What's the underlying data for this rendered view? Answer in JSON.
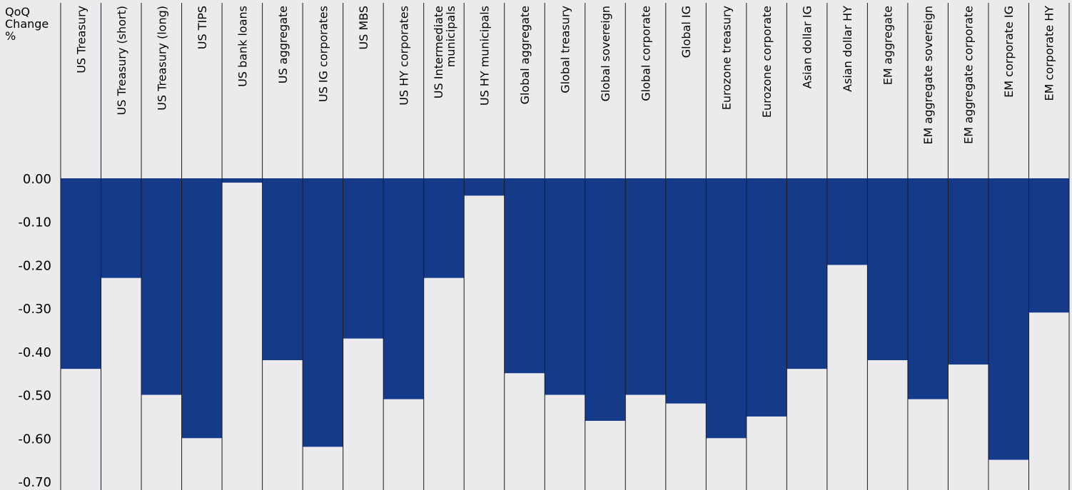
{
  "chart_data": {
    "type": "bar",
    "title": "",
    "ylabel": "QoQ\nChange\n%",
    "xlabel": "",
    "ylim": [
      -0.7,
      0.0
    ],
    "yticks": [
      "0.00",
      "-0.10",
      "-0.20",
      "-0.30",
      "-0.40",
      "-0.50",
      "-0.60",
      "-0.70"
    ],
    "bar_color": "#163a8a",
    "categories": [
      "US Treasury",
      "US Treasury (short)",
      "US Treasury (long)",
      "US TIPS",
      "US bank loans",
      "US aggregate",
      "US IG corporates",
      "US MBS",
      "US HY corporates",
      "US Intermediate municipals",
      "US HY municipals",
      "Global aggregate",
      "Global treasury",
      "Global sovereign",
      "Global corporate",
      "Global IG",
      "Eurozone treasury",
      "Eurozone corporate",
      "Asian dollar IG",
      "Asian dollar HY",
      "EM aggregate",
      "EM aggregate sovereign",
      "EM aggregate corporate",
      "EM corporate IG",
      "EM corporate HY"
    ],
    "values": [
      -0.44,
      -0.23,
      -0.5,
      -0.6,
      -0.01,
      -0.42,
      -0.62,
      -0.37,
      -0.51,
      -0.23,
      -0.04,
      -0.45,
      -0.5,
      -0.56,
      -0.5,
      -0.52,
      -0.6,
      -0.55,
      -0.44,
      -0.2,
      -0.42,
      -0.51,
      -0.43,
      -0.65,
      -0.31
    ]
  }
}
